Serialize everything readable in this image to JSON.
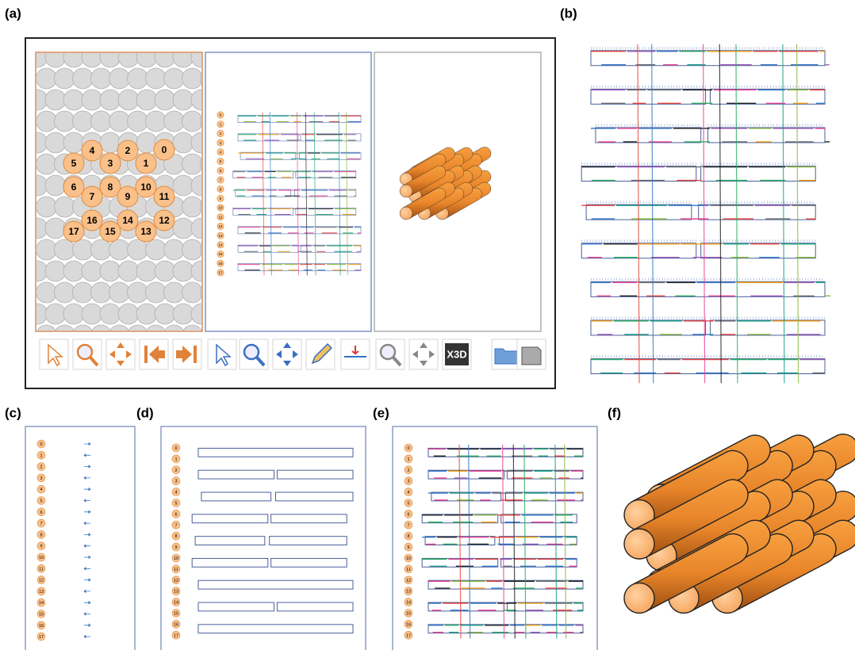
{
  "panels": {
    "a": "(a)",
    "b": "(b)",
    "c": "(c)",
    "d": "(d)",
    "e": "(e)",
    "f": "(f)"
  },
  "helices": [
    0,
    1,
    2,
    3,
    4,
    5,
    6,
    7,
    8,
    9,
    10,
    11,
    12,
    13,
    14,
    15,
    16,
    17
  ],
  "toolbar": {
    "x3d": "X3D"
  }
}
